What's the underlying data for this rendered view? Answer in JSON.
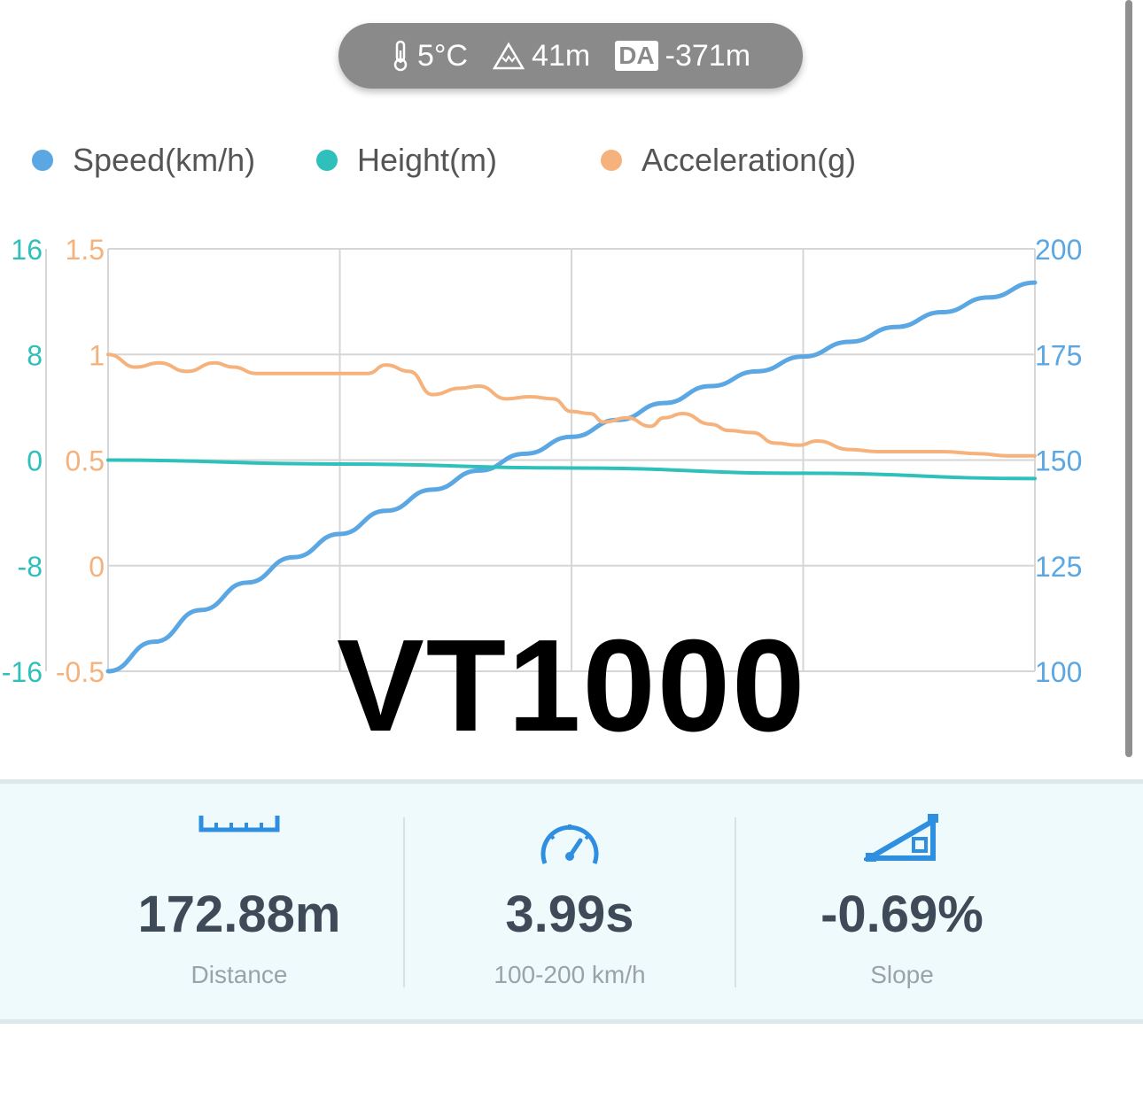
{
  "conditions": {
    "temperature": "5°C",
    "altitude": "41m",
    "da_label": "DA",
    "density_altitude": "-371m",
    "icons": [
      "thermometer-icon",
      "mountain-icon",
      "da-icon"
    ]
  },
  "legend": [
    {
      "label": "Speed(km/h)",
      "color": "#5aa7e3"
    },
    {
      "label": "Height(m)",
      "color": "#2fc0bb"
    },
    {
      "label": "Acceleration(g)",
      "color": "#f5b27c"
    }
  ],
  "watermark": "VT1000",
  "chart_data": {
    "type": "line",
    "grid": true,
    "legend_position": "top",
    "axes": {
      "height_axis": {
        "side": "left-outer",
        "ticks": [
          "16",
          "8",
          "0",
          "-8",
          "-16"
        ],
        "range": [
          -16,
          16
        ],
        "color": "#2fc0bb"
      },
      "accel_axis": {
        "side": "left-inner",
        "ticks": [
          "1.5",
          "1",
          "0.5",
          "0",
          "-0.5"
        ],
        "range": [
          -0.5,
          1.5
        ],
        "color": "#f5b27c"
      },
      "speed_axis": {
        "side": "right",
        "ticks": [
          "200",
          "175",
          "150",
          "125",
          "100"
        ],
        "range": [
          100,
          200
        ],
        "color": "#5aa7e3"
      }
    },
    "series": [
      {
        "name": "Speed(km/h)",
        "axis": "speed_axis",
        "color": "#5aa7e3",
        "x": [
          0,
          0.05,
          0.1,
          0.15,
          0.2,
          0.25,
          0.3,
          0.35,
          0.4,
          0.45,
          0.5,
          0.55,
          0.6,
          0.65,
          0.7,
          0.75,
          0.8,
          0.85,
          0.9,
          0.95,
          1.0
        ],
        "values": [
          100,
          107,
          114.5,
          121,
          127,
          132.5,
          138,
          143,
          147.5,
          151.5,
          155.5,
          159.5,
          163.5,
          167.5,
          171,
          174.5,
          178,
          181.5,
          185,
          188.5,
          192
        ]
      },
      {
        "name": "Height(m)",
        "axis": "height_axis",
        "color": "#2fc0bb",
        "x": [
          0,
          0.25,
          0.5,
          0.75,
          1.0
        ],
        "values": [
          0,
          -0.3,
          -0.6,
          -1.0,
          -1.4
        ]
      },
      {
        "name": "Acceleration(g)",
        "axis": "accel_axis",
        "color": "#f5b27c",
        "x": [
          0,
          0.03,
          0.055,
          0.085,
          0.115,
          0.135,
          0.16,
          0.2,
          0.24,
          0.28,
          0.3,
          0.325,
          0.35,
          0.38,
          0.4,
          0.43,
          0.455,
          0.48,
          0.5,
          0.52,
          0.535,
          0.56,
          0.585,
          0.6,
          0.62,
          0.65,
          0.67,
          0.695,
          0.72,
          0.745,
          0.765,
          0.8,
          0.83,
          0.87,
          0.9,
          0.94,
          0.97,
          1.0
        ],
        "values": [
          1.0,
          0.94,
          0.96,
          0.92,
          0.96,
          0.94,
          0.91,
          0.91,
          0.91,
          0.91,
          0.95,
          0.92,
          0.81,
          0.84,
          0.85,
          0.79,
          0.8,
          0.79,
          0.73,
          0.72,
          0.68,
          0.7,
          0.66,
          0.7,
          0.72,
          0.67,
          0.64,
          0.63,
          0.58,
          0.57,
          0.59,
          0.55,
          0.54,
          0.54,
          0.54,
          0.53,
          0.52,
          0.52
        ]
      }
    ]
  },
  "stats": [
    {
      "icon": "ruler-icon",
      "value": "172.88m",
      "label": "Distance"
    },
    {
      "icon": "speedometer-icon",
      "value": "3.99s",
      "label": "100-200 km/h"
    },
    {
      "icon": "slope-icon",
      "value": "-0.69%",
      "label": "Slope"
    }
  ]
}
